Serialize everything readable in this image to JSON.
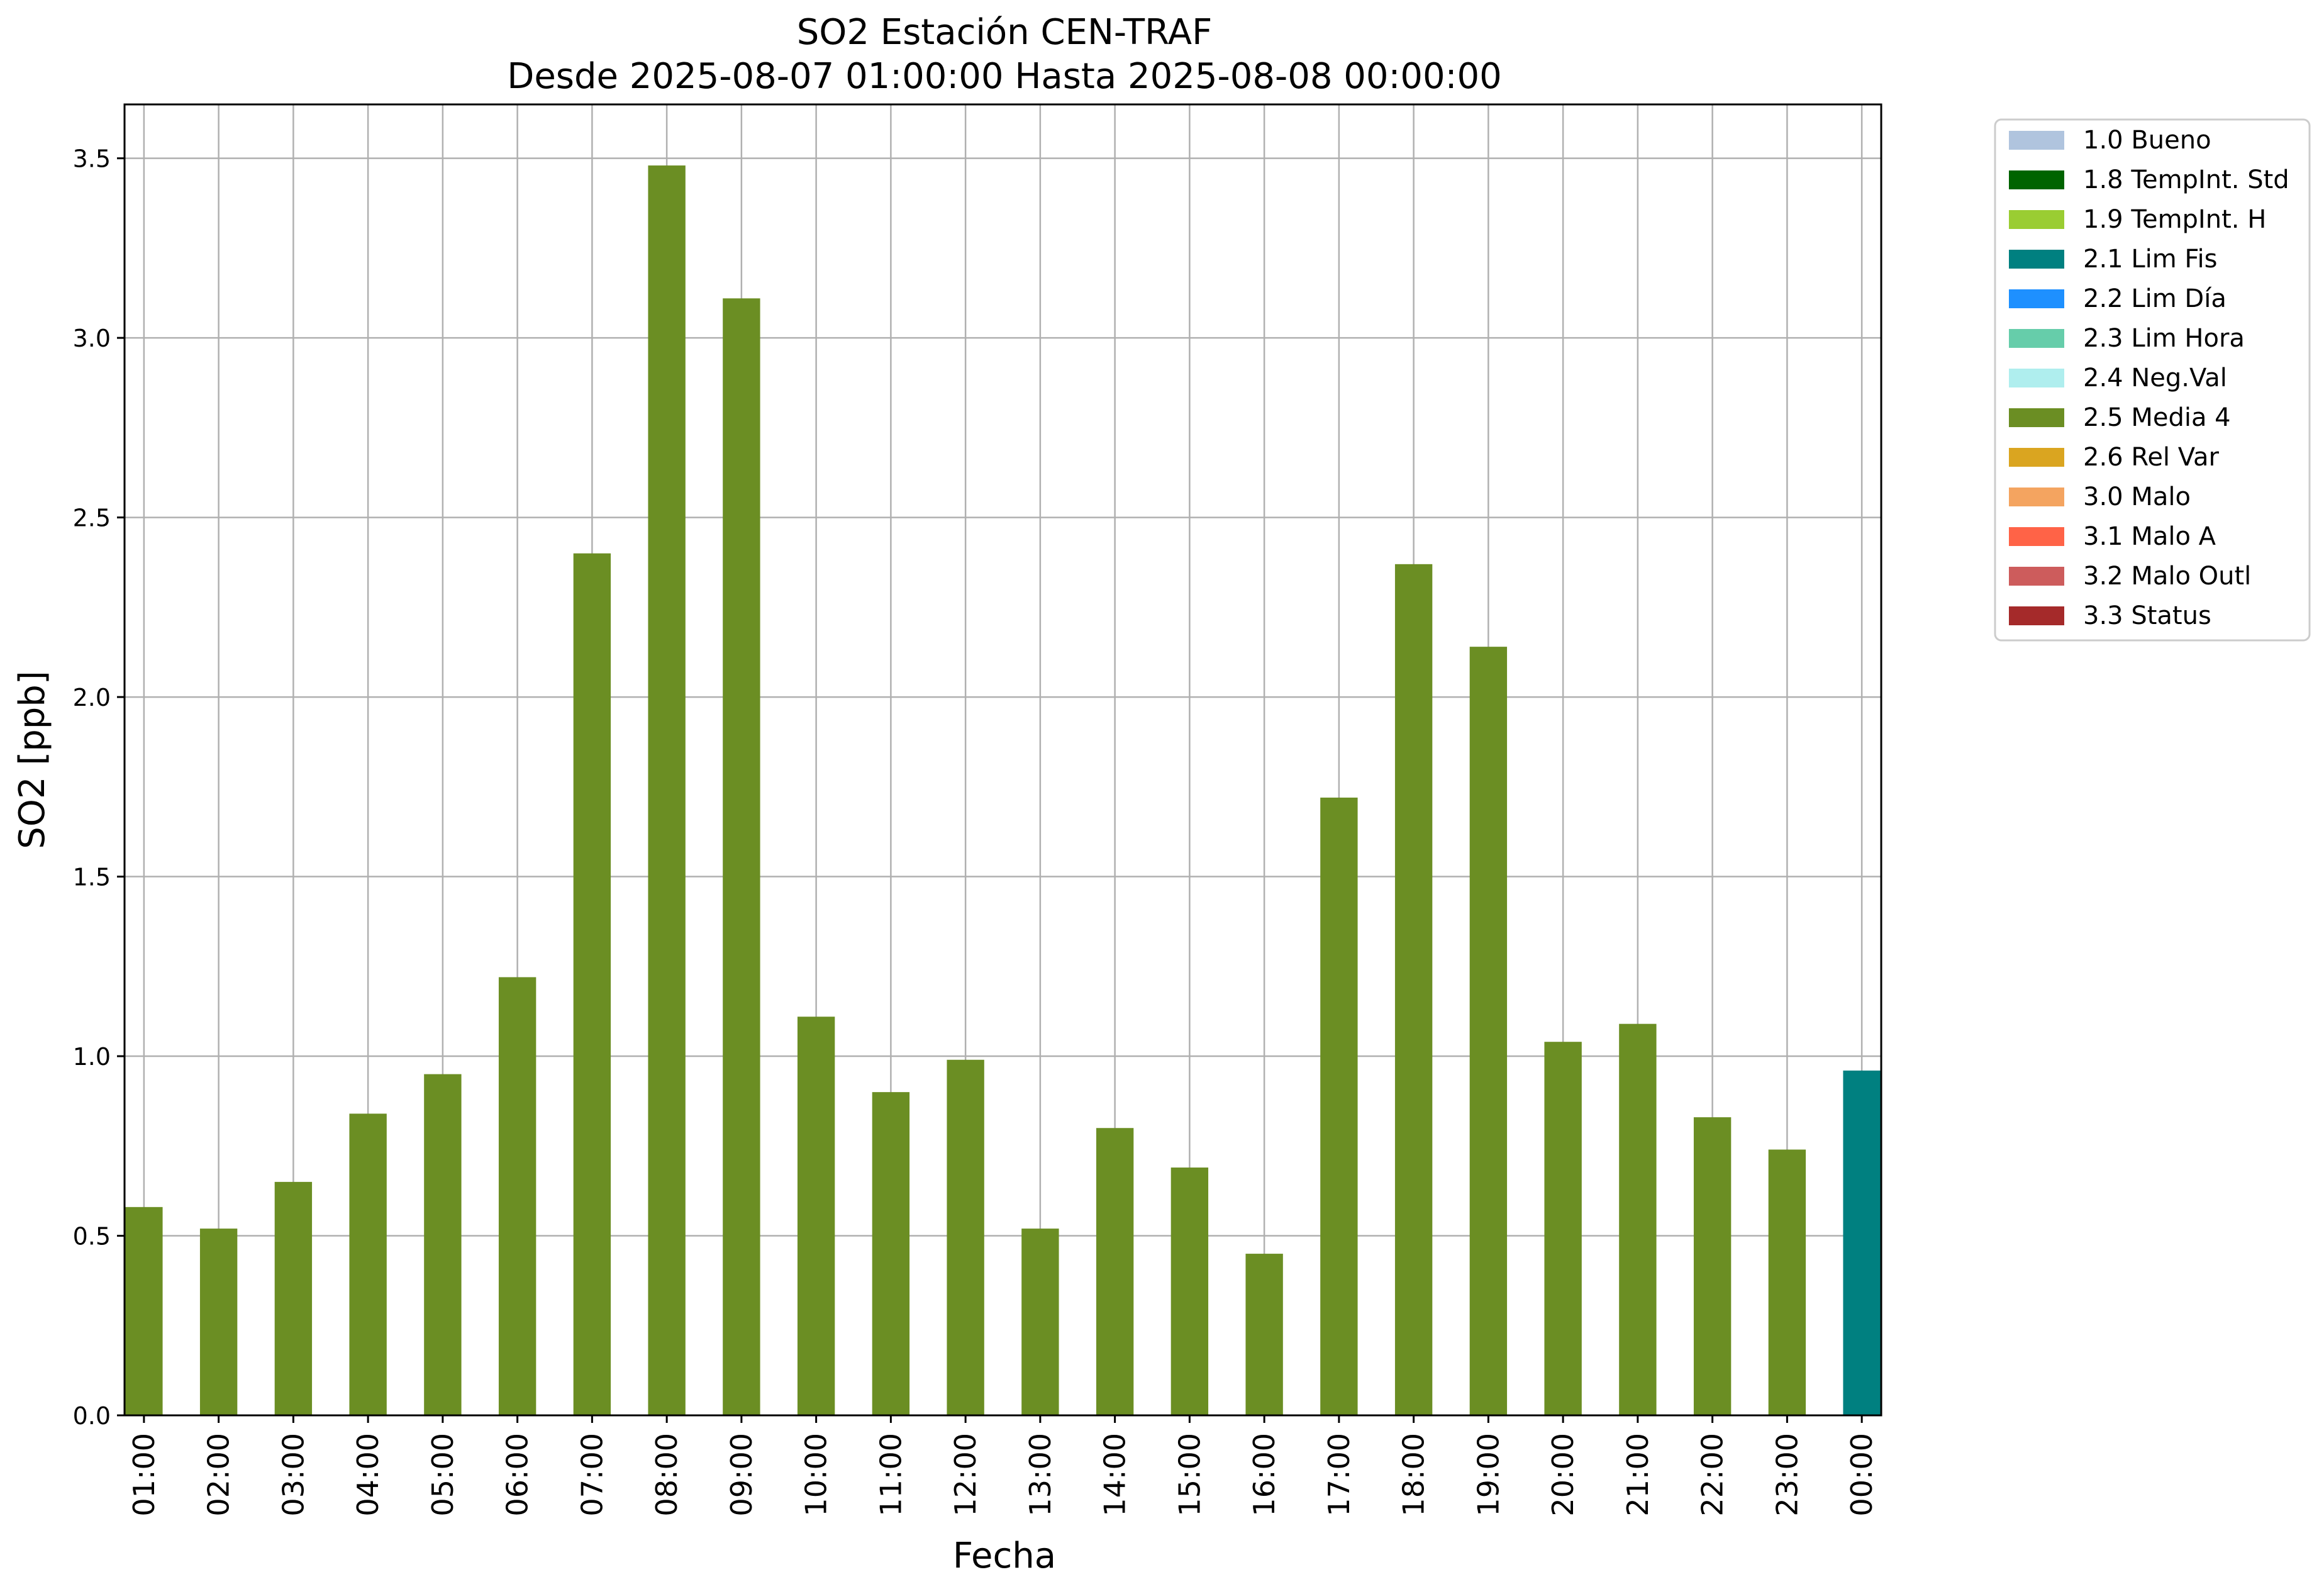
{
  "chart_data": {
    "type": "bar",
    "title": "SO2 Estación CEN-TRAF",
    "subtitle": "Desde 2025-08-07 01:00:00 Hasta 2025-08-08 00:00:00",
    "xlabel": "Fecha",
    "ylabel": "SO2 [ppb]",
    "ylim": [
      0,
      3.65
    ],
    "yticks": [
      "0.0",
      "0.5",
      "1.0",
      "1.5",
      "2.0",
      "2.5",
      "3.0",
      "3.5"
    ],
    "grid": true,
    "legend_position": "outside-top-right",
    "categories": [
      "01:00",
      "02:00",
      "03:00",
      "04:00",
      "05:00",
      "06:00",
      "07:00",
      "08:00",
      "09:00",
      "10:00",
      "11:00",
      "12:00",
      "13:00",
      "14:00",
      "15:00",
      "16:00",
      "17:00",
      "18:00",
      "19:00",
      "20:00",
      "21:00",
      "22:00",
      "23:00",
      "00:00"
    ],
    "values": [
      0.58,
      0.52,
      0.65,
      0.84,
      0.95,
      1.22,
      2.4,
      3.48,
      3.11,
      1.11,
      0.9,
      0.99,
      0.52,
      0.8,
      0.69,
      0.45,
      1.72,
      2.37,
      2.14,
      1.04,
      1.09,
      0.83,
      0.74,
      0.96
    ],
    "flags": [
      "2.5 Media 4",
      "2.5 Media 4",
      "2.5 Media 4",
      "2.5 Media 4",
      "2.5 Media 4",
      "2.5 Media 4",
      "2.5 Media 4",
      "2.5 Media 4",
      "2.5 Media 4",
      "2.5 Media 4",
      "2.5 Media 4",
      "2.5 Media 4",
      "2.5 Media 4",
      "2.5 Media 4",
      "2.5 Media 4",
      "2.5 Media 4",
      "2.5 Media 4",
      "2.5 Media 4",
      "2.5 Media 4",
      "2.5 Media 4",
      "2.5 Media 4",
      "2.5 Media 4",
      "2.5 Media 4",
      "2.1 Lim Fis"
    ],
    "legend": [
      {
        "label": "1.0 Bueno",
        "color": "#b0c4de"
      },
      {
        "label": "1.8 TempInt. Std",
        "color": "#006400"
      },
      {
        "label": "1.9 TempInt. H",
        "color": "#9acd32"
      },
      {
        "label": "2.1 Lim Fis",
        "color": "#008080"
      },
      {
        "label": "2.2 Lim Día",
        "color": "#1e90ff"
      },
      {
        "label": "2.3 Lim Hora",
        "color": "#66cdaa"
      },
      {
        "label": "2.4 Neg.Val",
        "color": "#afeeee"
      },
      {
        "label": "2.5 Media 4",
        "color": "#6b8e23"
      },
      {
        "label": "2.6 Rel Var",
        "color": "#daa520"
      },
      {
        "label": "3.0 Malo",
        "color": "#f4a460"
      },
      {
        "label": "3.1 Malo A",
        "color": "#ff6347"
      },
      {
        "label": "3.2 Malo Outl",
        "color": "#cd5c5c"
      },
      {
        "label": "3.3 Status",
        "color": "#a52a2a"
      }
    ]
  }
}
